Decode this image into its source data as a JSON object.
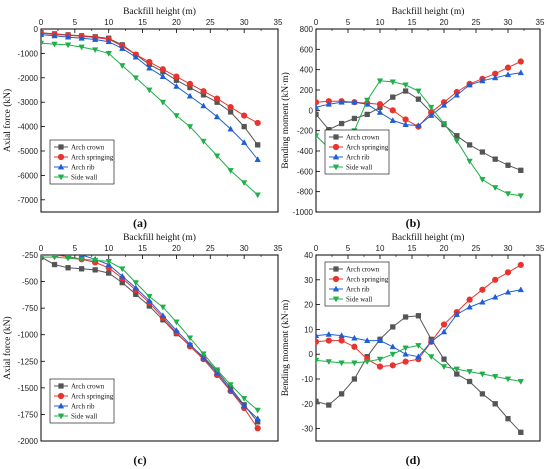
{
  "chart_data": [
    {
      "type": "line",
      "panel_label": "(a)",
      "xlabel": "Backfill height (m)",
      "ylabel": "Axial force (kN)",
      "xlim": [
        0,
        35
      ],
      "ylim": [
        -7500,
        0
      ],
      "x_axis_position": "top",
      "legend": "bottom-left",
      "xticks": [
        "0",
        "5",
        "10",
        "15",
        "20",
        "25",
        "30",
        "35"
      ],
      "yticks": [
        "-7000",
        "-6000",
        "-5000",
        "-4000",
        "-3000",
        "-2000",
        "-1000",
        "0"
      ],
      "series": [
        {
          "name": "Arch crown",
          "color": "#555555",
          "marker": "square",
          "x": [
            0,
            2,
            4,
            6,
            8,
            10,
            12,
            14,
            16,
            18,
            20,
            22,
            24,
            26,
            28,
            30,
            32
          ],
          "y": [
            -150,
            -200,
            -240,
            -280,
            -320,
            -380,
            -650,
            -1050,
            -1450,
            -1750,
            -2100,
            -2400,
            -2700,
            -3000,
            -3400,
            -4000,
            -4750
          ]
        },
        {
          "name": "Arch springing",
          "color": "#e8332e",
          "marker": "circle",
          "x": [
            0,
            2,
            4,
            6,
            8,
            10,
            12,
            14,
            16,
            18,
            20,
            22,
            24,
            26,
            28,
            30,
            32
          ],
          "y": [
            -170,
            -220,
            -260,
            -300,
            -350,
            -420,
            -700,
            -1050,
            -1350,
            -1650,
            -1950,
            -2250,
            -2550,
            -2850,
            -3200,
            -3550,
            -3850
          ]
        },
        {
          "name": "Arch rib",
          "color": "#1f5fd6",
          "marker": "triangle-up",
          "x": [
            0,
            2,
            4,
            6,
            8,
            10,
            12,
            14,
            16,
            18,
            20,
            22,
            24,
            26,
            28,
            30,
            32
          ],
          "y": [
            -230,
            -280,
            -330,
            -380,
            -430,
            -520,
            -800,
            -1150,
            -1600,
            -1950,
            -2350,
            -2750,
            -3150,
            -3600,
            -4100,
            -4650,
            -5350
          ]
        },
        {
          "name": "Side wall",
          "color": "#1fb04a",
          "marker": "triangle-down",
          "x": [
            0,
            2,
            4,
            6,
            8,
            10,
            12,
            14,
            16,
            18,
            20,
            22,
            24,
            26,
            28,
            30,
            32
          ],
          "y": [
            -580,
            -620,
            -650,
            -740,
            -850,
            -1000,
            -1500,
            -2000,
            -2500,
            -3000,
            -3550,
            -4000,
            -4600,
            -5200,
            -5800,
            -6300,
            -6800
          ]
        }
      ]
    },
    {
      "type": "line",
      "panel_label": "(b)",
      "xlabel": "Backfill height (m)",
      "ylabel": "Bending moment (kN·m)",
      "xlim": [
        0,
        35
      ],
      "ylim": [
        -1000,
        800
      ],
      "x_axis_position": "top",
      "legend": "bottom-left",
      "xticks": [
        "0",
        "5",
        "10",
        "15",
        "20",
        "25",
        "30",
        "35"
      ],
      "yticks": [
        "-1000",
        "-800",
        "-600",
        "-400",
        "-200",
        "0",
        "200",
        "400",
        "600",
        "800"
      ],
      "series": [
        {
          "name": "Arch crown",
          "color": "#555555",
          "marker": "square",
          "x": [
            0,
            2,
            4,
            6,
            8,
            10,
            12,
            14,
            16,
            18,
            20,
            22,
            24,
            26,
            28,
            30,
            32
          ],
          "y": [
            -40,
            -190,
            -130,
            -80,
            -40,
            30,
            130,
            190,
            110,
            -20,
            -140,
            -250,
            -340,
            -410,
            -480,
            -540,
            -590
          ]
        },
        {
          "name": "Arch springing",
          "color": "#e8332e",
          "marker": "circle",
          "x": [
            0,
            2,
            4,
            6,
            8,
            10,
            12,
            14,
            16,
            18,
            20,
            22,
            24,
            26,
            28,
            30,
            32
          ],
          "y": [
            80,
            90,
            90,
            80,
            70,
            60,
            0,
            -90,
            -160,
            -20,
            80,
            180,
            260,
            310,
            360,
            420,
            480
          ]
        },
        {
          "name": "Arch rib",
          "color": "#1f5fd6",
          "marker": "triangle-up",
          "x": [
            0,
            2,
            4,
            6,
            8,
            10,
            12,
            14,
            16,
            18,
            20,
            22,
            24,
            26,
            28,
            30,
            32
          ],
          "y": [
            30,
            60,
            80,
            80,
            60,
            -20,
            -100,
            -140,
            -150,
            -50,
            50,
            150,
            250,
            290,
            320,
            350,
            370
          ]
        },
        {
          "name": "Side wall",
          "color": "#1fb04a",
          "marker": "triangle-down",
          "x": [
            0,
            2,
            4,
            6,
            8,
            10,
            12,
            14,
            16,
            18,
            20,
            22,
            24,
            26,
            28,
            30,
            32
          ],
          "y": [
            -250,
            -370,
            -400,
            -200,
            100,
            290,
            280,
            250,
            190,
            30,
            -130,
            -300,
            -500,
            -680,
            -760,
            -820,
            -840
          ]
        }
      ]
    },
    {
      "type": "line",
      "panel_label": "(c)",
      "xlabel": "Backfill height (m)",
      "ylabel": "Axial force (kN)",
      "xlim": [
        0,
        35
      ],
      "ylim": [
        -2000,
        -250
      ],
      "x_axis_position": "top",
      "legend": "bottom-left",
      "xticks": [
        "0",
        "5",
        "10",
        "15",
        "20",
        "25",
        "30",
        "35"
      ],
      "yticks": [
        "-2000",
        "-1750",
        "-1500",
        "-1250",
        "-1000",
        "-750",
        "-500",
        "-250"
      ],
      "series": [
        {
          "name": "Arch crown",
          "color": "#555555",
          "marker": "square",
          "x": [
            0,
            2,
            4,
            6,
            8,
            10,
            12,
            14,
            16,
            18,
            20,
            22,
            24,
            26,
            28,
            30,
            32
          ],
          "y": [
            -270,
            -340,
            -370,
            -380,
            -390,
            -420,
            -510,
            -620,
            -730,
            -860,
            -990,
            -1100,
            -1210,
            -1340,
            -1500,
            -1660,
            -1820
          ]
        },
        {
          "name": "Arch springing",
          "color": "#e8332e",
          "marker": "circle",
          "x": [
            0,
            2,
            4,
            6,
            8,
            10,
            12,
            14,
            16,
            18,
            20,
            22,
            24,
            26,
            28,
            30,
            32
          ],
          "y": [
            -240,
            -250,
            -265,
            -290,
            -320,
            -370,
            -470,
            -580,
            -700,
            -840,
            -980,
            -1110,
            -1230,
            -1380,
            -1530,
            -1690,
            -1880
          ]
        },
        {
          "name": "Arch rib",
          "color": "#1f5fd6",
          "marker": "triangle-up",
          "x": [
            0,
            2,
            4,
            6,
            8,
            10,
            12,
            14,
            16,
            18,
            20,
            22,
            24,
            26,
            28,
            30,
            32
          ],
          "y": [
            -200,
            -205,
            -220,
            -250,
            -290,
            -340,
            -450,
            -560,
            -680,
            -820,
            -960,
            -1090,
            -1220,
            -1360,
            -1520,
            -1670,
            -1790
          ]
        },
        {
          "name": "Side wall",
          "color": "#1fb04a",
          "marker": "triangle-down",
          "x": [
            0,
            2,
            4,
            6,
            8,
            10,
            12,
            14,
            16,
            18,
            20,
            22,
            24,
            26,
            28,
            30,
            32
          ],
          "y": [
            -270,
            -270,
            -280,
            -290,
            -300,
            -310,
            -380,
            -510,
            -640,
            -740,
            -880,
            -1030,
            -1180,
            -1330,
            -1470,
            -1600,
            -1710
          ]
        }
      ]
    },
    {
      "type": "line",
      "panel_label": "(d)",
      "xlabel": "Backfill height (m)",
      "ylabel": "Bending moment (kN·m)",
      "xlim": [
        0,
        35
      ],
      "ylim": [
        -35,
        40
      ],
      "x_axis_position": "top",
      "legend": "top-left",
      "xticks": [
        "0",
        "5",
        "10",
        "15",
        "20",
        "25",
        "30",
        "35"
      ],
      "yticks": [
        "-30",
        "-20",
        "-10",
        "0",
        "10",
        "20",
        "30",
        "40"
      ],
      "series": [
        {
          "name": "Arch crown",
          "color": "#555555",
          "marker": "square",
          "x": [
            0,
            2,
            4,
            6,
            8,
            10,
            12,
            14,
            16,
            18,
            20,
            22,
            24,
            26,
            28,
            30,
            32
          ],
          "y": [
            -19,
            -20.5,
            -16,
            -10,
            -1,
            6,
            11,
            15,
            15.5,
            6,
            -2,
            -8,
            -11,
            -16,
            -20,
            -26,
            -31.5
          ]
        },
        {
          "name": "Arch springing",
          "color": "#e8332e",
          "marker": "circle",
          "x": [
            0,
            2,
            4,
            6,
            8,
            10,
            12,
            14,
            16,
            18,
            20,
            22,
            24,
            26,
            28,
            30,
            32
          ],
          "y": [
            5,
            5.5,
            5.5,
            3,
            -2,
            -5,
            -4.5,
            -3,
            -2,
            5,
            12,
            17,
            22,
            26,
            30,
            33,
            36
          ]
        },
        {
          "name": "Arch rib",
          "color": "#1f5fd6",
          "marker": "triangle-up",
          "x": [
            0,
            2,
            4,
            6,
            8,
            10,
            12,
            14,
            16,
            18,
            20,
            22,
            24,
            26,
            28,
            30,
            32
          ],
          "y": [
            7.5,
            8,
            7.5,
            6.5,
            5.5,
            5.5,
            3,
            0,
            -1,
            5,
            9,
            16,
            19,
            21,
            23,
            25,
            26
          ]
        },
        {
          "name": "Side wall",
          "color": "#1fb04a",
          "marker": "triangle-down",
          "x": [
            0,
            2,
            4,
            6,
            8,
            10,
            12,
            14,
            16,
            18,
            20,
            22,
            24,
            26,
            28,
            30,
            32
          ],
          "y": [
            -2.5,
            -3,
            -3.5,
            -3.5,
            -3,
            -2,
            0,
            2.5,
            3.5,
            -1,
            -5,
            -6,
            -7,
            -8,
            -9,
            -10,
            -11
          ]
        }
      ]
    }
  ]
}
